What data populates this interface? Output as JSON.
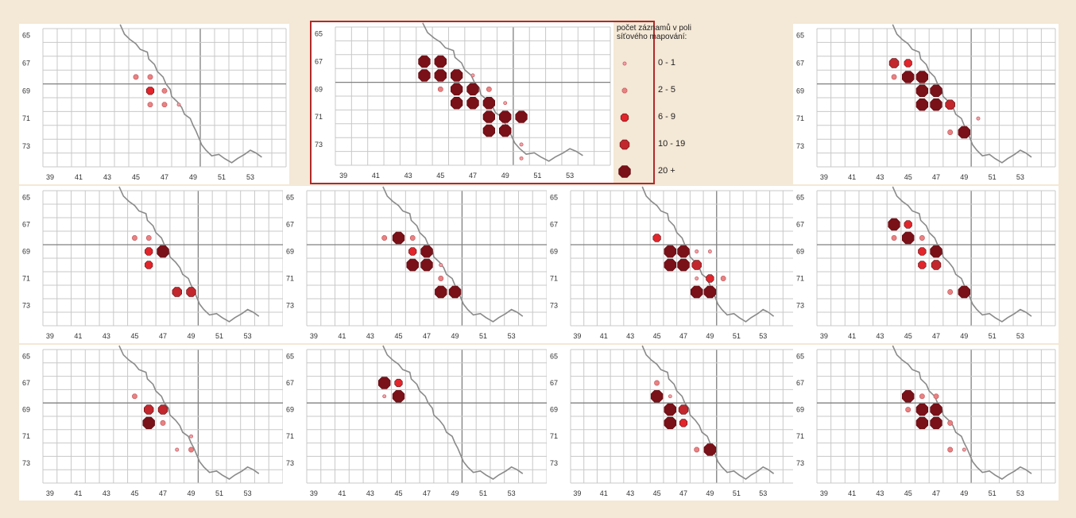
{
  "legend": {
    "title": "počet záznamů v poli\nsíťového mapování:",
    "classes": [
      {
        "label": "0 - 1",
        "level": 1,
        "color": "#f2a3a8"
      },
      {
        "label": "2 - 5",
        "level": 2,
        "color": "#ea8282"
      },
      {
        "label": "6 - 9",
        "level": 3,
        "color": "#e2252b"
      },
      {
        "label": "10 - 19",
        "level": 4,
        "color": "#c1272d"
      },
      {
        "label": "20 +",
        "level": 5,
        "color": "#7a1018"
      }
    ]
  },
  "axes": {
    "x_ticks": [
      "39",
      "41",
      "43",
      "45",
      "47",
      "49",
      "51",
      "53"
    ],
    "y_ticks": [
      "65",
      "67",
      "69",
      "71",
      "73"
    ]
  },
  "maps": [
    {
      "id": "r1c1",
      "points": [
        [
          45,
          68,
          2
        ],
        [
          46,
          68,
          2
        ],
        [
          46,
          69,
          3
        ],
        [
          47,
          69,
          2
        ],
        [
          46,
          70,
          2
        ],
        [
          47,
          70,
          2
        ],
        [
          48,
          70,
          1
        ]
      ]
    },
    {
      "id": "r1c2-highlight",
      "points": [
        [
          44,
          67,
          5
        ],
        [
          45,
          67,
          5
        ],
        [
          44,
          68,
          5
        ],
        [
          45,
          68,
          5
        ],
        [
          46,
          68,
          5
        ],
        [
          47,
          68,
          1
        ],
        [
          45,
          69,
          2
        ],
        [
          46,
          69,
          5
        ],
        [
          47,
          69,
          5
        ],
        [
          48,
          69,
          2
        ],
        [
          46,
          70,
          5
        ],
        [
          47,
          70,
          5
        ],
        [
          48,
          70,
          5
        ],
        [
          49,
          70,
          1
        ],
        [
          48,
          71,
          5
        ],
        [
          49,
          71,
          5
        ],
        [
          50,
          71,
          5
        ],
        [
          48,
          72,
          5
        ],
        [
          49,
          72,
          5
        ],
        [
          50,
          73,
          1
        ],
        [
          50,
          74,
          1
        ]
      ]
    },
    {
      "id": "r1c3",
      "points": [
        [
          44,
          67,
          4
        ],
        [
          45,
          67,
          3
        ],
        [
          44,
          68,
          2
        ],
        [
          45,
          68,
          5
        ],
        [
          46,
          68,
          5
        ],
        [
          46,
          69,
          5
        ],
        [
          47,
          69,
          5
        ],
        [
          46,
          70,
          5
        ],
        [
          47,
          70,
          5
        ],
        [
          48,
          70,
          4
        ],
        [
          50,
          71,
          1
        ],
        [
          48,
          72,
          2
        ],
        [
          49,
          72,
          5
        ]
      ]
    },
    {
      "id": "r2c1",
      "points": [
        [
          45,
          68,
          2
        ],
        [
          46,
          68,
          2
        ],
        [
          46,
          69,
          3
        ],
        [
          47,
          69,
          5
        ],
        [
          46,
          70,
          3
        ],
        [
          48,
          72,
          4
        ],
        [
          49,
          72,
          4
        ]
      ]
    },
    {
      "id": "r2c2",
      "points": [
        [
          44,
          68,
          2
        ],
        [
          45,
          68,
          5
        ],
        [
          46,
          68,
          2
        ],
        [
          46,
          69,
          3
        ],
        [
          47,
          69,
          5
        ],
        [
          46,
          70,
          5
        ],
        [
          47,
          70,
          5
        ],
        [
          48,
          70,
          1
        ],
        [
          48,
          71,
          2
        ],
        [
          48,
          72,
          5
        ],
        [
          49,
          72,
          5
        ]
      ]
    },
    {
      "id": "r2c3",
      "points": [
        [
          45,
          68,
          3
        ],
        [
          46,
          69,
          5
        ],
        [
          47,
          69,
          5
        ],
        [
          48,
          69,
          1
        ],
        [
          49,
          69,
          1
        ],
        [
          46,
          70,
          5
        ],
        [
          47,
          70,
          5
        ],
        [
          48,
          70,
          4
        ],
        [
          48,
          71,
          1
        ],
        [
          49,
          71,
          3
        ],
        [
          50,
          71,
          2
        ],
        [
          48,
          72,
          5
        ],
        [
          49,
          72,
          5
        ]
      ]
    },
    {
      "id": "r2c4",
      "points": [
        [
          44,
          67,
          5
        ],
        [
          45,
          67,
          3
        ],
        [
          44,
          68,
          2
        ],
        [
          45,
          68,
          5
        ],
        [
          46,
          68,
          2
        ],
        [
          46,
          69,
          3
        ],
        [
          47,
          69,
          5
        ],
        [
          46,
          70,
          3
        ],
        [
          47,
          70,
          4
        ],
        [
          48,
          72,
          2
        ],
        [
          49,
          72,
          5
        ]
      ]
    },
    {
      "id": "r3c1",
      "points": [
        [
          45,
          68,
          2
        ],
        [
          46,
          69,
          4
        ],
        [
          47,
          69,
          4
        ],
        [
          46,
          70,
          5
        ],
        [
          47,
          70,
          2
        ],
        [
          49,
          71,
          1
        ],
        [
          48,
          72,
          1
        ],
        [
          49,
          72,
          2
        ]
      ]
    },
    {
      "id": "r3c2",
      "points": [
        [
          44,
          67,
          5
        ],
        [
          45,
          67,
          3
        ],
        [
          44,
          68,
          1
        ],
        [
          45,
          68,
          5
        ]
      ]
    },
    {
      "id": "r3c3",
      "points": [
        [
          45,
          67,
          2
        ],
        [
          45,
          68,
          5
        ],
        [
          46,
          68,
          1
        ],
        [
          46,
          69,
          5
        ],
        [
          47,
          69,
          4
        ],
        [
          46,
          70,
          5
        ],
        [
          47,
          70,
          3
        ],
        [
          48,
          72,
          2
        ],
        [
          49,
          72,
          5
        ]
      ]
    },
    {
      "id": "r3c4",
      "points": [
        [
          45,
          68,
          5
        ],
        [
          46,
          68,
          2
        ],
        [
          47,
          68,
          2
        ],
        [
          45,
          69,
          2
        ],
        [
          46,
          69,
          5
        ],
        [
          47,
          69,
          5
        ],
        [
          46,
          70,
          5
        ],
        [
          47,
          70,
          5
        ],
        [
          48,
          70,
          2
        ],
        [
          48,
          72,
          2
        ],
        [
          49,
          72,
          1
        ]
      ]
    }
  ]
}
